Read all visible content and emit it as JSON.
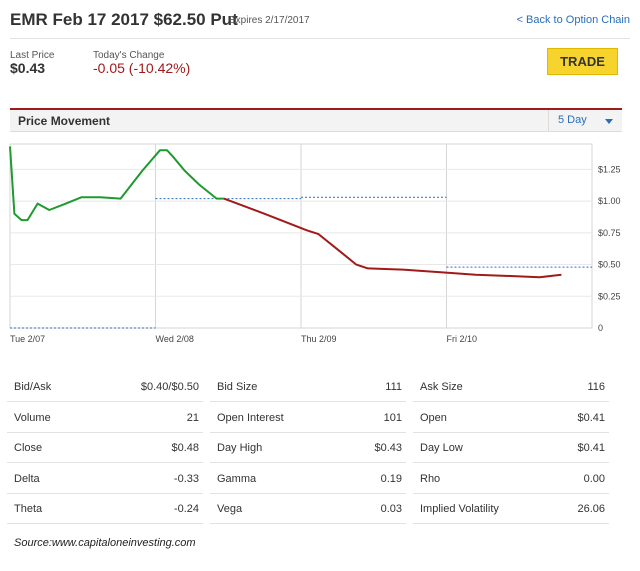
{
  "header": {
    "title": "EMR Feb 17 2017 $62.50 Put",
    "expires": "Expires 2/17/2017",
    "back_link": "< Back to Option Chain"
  },
  "quote": {
    "last_price_label": "Last Price",
    "last_price": "$0.43",
    "change_label": "Today's Change",
    "change": "-0.05 (-10.42%)",
    "trade_label": "TRADE"
  },
  "price_movement": {
    "title": "Price Movement",
    "range": "5 Day"
  },
  "chart_data": {
    "type": "line",
    "x_ticks": [
      "Tue 2/07",
      "Wed 2/08",
      "Thu 2/09",
      "Fri 2/10"
    ],
    "y_ticks": [
      "0",
      "$0.25",
      "$0.50",
      "$0.75",
      "$1.00",
      "$1.25"
    ],
    "ylim": [
      0,
      1.45
    ],
    "xlim": [
      0,
      4
    ],
    "colors": {
      "up": "#1e9a2f",
      "down": "#a01a1a",
      "prev_close": "#2a6ebb"
    },
    "up_series": {
      "x": [
        0,
        0.03,
        0.08,
        0.12,
        0.19,
        0.27,
        0.36,
        0.49,
        0.62,
        0.76,
        0.91,
        1.03,
        1.08,
        1.12,
        1.2,
        1.3,
        1.42,
        1.47
      ],
      "y": [
        1.43,
        0.9,
        0.85,
        0.85,
        0.98,
        0.93,
        0.97,
        1.03,
        1.03,
        1.02,
        1.24,
        1.4,
        1.4,
        1.35,
        1.24,
        1.13,
        1.02,
        1.02
      ]
    },
    "down_series": {
      "x": [
        1.47,
        1.75,
        2.04,
        2.12,
        2.25,
        2.38,
        2.46,
        2.7,
        2.96,
        3.2,
        3.44,
        3.64,
        3.79
      ],
      "y": [
        1.02,
        0.9,
        0.77,
        0.74,
        0.62,
        0.5,
        0.47,
        0.46,
        0.44,
        0.42,
        0.41,
        0.4,
        0.42
      ]
    },
    "prev_close_levels": [
      {
        "day": "Tue 2/07",
        "value": 0.0
      },
      {
        "day": "Wed 2/08",
        "value": 1.02
      },
      {
        "day": "Thu 2/09",
        "value": 1.03
      },
      {
        "day": "Fri 2/10",
        "value": 0.48
      }
    ]
  },
  "stats": [
    [
      {
        "label": "Bid/Ask",
        "value": "$0.40/$0.50"
      },
      {
        "label": "Bid Size",
        "value": "111"
      },
      {
        "label": "Ask Size",
        "value": "116"
      }
    ],
    [
      {
        "label": "Volume",
        "value": "21"
      },
      {
        "label": "Open Interest",
        "value": "101"
      },
      {
        "label": "Open",
        "value": "$0.41"
      }
    ],
    [
      {
        "label": "Close",
        "value": "$0.48"
      },
      {
        "label": "Day High",
        "value": "$0.43"
      },
      {
        "label": "Day Low",
        "value": "$0.41"
      }
    ],
    [
      {
        "label": "Delta",
        "value": "-0.33"
      },
      {
        "label": "Gamma",
        "value": "0.19"
      },
      {
        "label": "Rho",
        "value": "0.00"
      }
    ],
    [
      {
        "label": "Theta",
        "value": "-0.24"
      },
      {
        "label": "Vega",
        "value": "0.03"
      },
      {
        "label": "Implied Volatility",
        "value": "26.06"
      }
    ]
  ],
  "source": "Source:www.capitaloneinvesting.com"
}
